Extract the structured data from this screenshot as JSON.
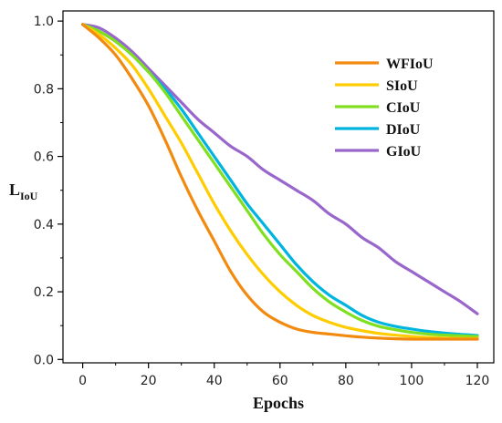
{
  "chart_data": {
    "type": "line",
    "xlabel": "Epochs",
    "ylabel_main": "L",
    "ylabel_sub": "IoU",
    "xlim": [
      -6,
      125
    ],
    "ylim": [
      -0.01,
      1.03
    ],
    "x_ticks": [
      0,
      20,
      40,
      60,
      80,
      100,
      120
    ],
    "x_tick_labels": [
      "0",
      "20",
      "40",
      "60",
      "80",
      "100",
      "120"
    ],
    "y_ticks": [
      0.0,
      0.2,
      0.4,
      0.6,
      0.8,
      1.0
    ],
    "y_tick_labels": [
      "0.0",
      "0.2",
      "0.4",
      "0.6",
      "0.8",
      "1.0"
    ],
    "grid": false,
    "legend_position": "top-right",
    "series": [
      {
        "name": "WFIoU",
        "color": "#f28a10",
        "x": [
          0,
          5,
          10,
          15,
          20,
          25,
          30,
          35,
          40,
          45,
          50,
          55,
          60,
          65,
          70,
          75,
          80,
          85,
          90,
          95,
          100,
          105,
          110,
          115,
          120
        ],
        "y": [
          0.99,
          0.95,
          0.9,
          0.83,
          0.75,
          0.65,
          0.54,
          0.44,
          0.35,
          0.26,
          0.19,
          0.14,
          0.11,
          0.09,
          0.08,
          0.075,
          0.07,
          0.066,
          0.063,
          0.061,
          0.06,
          0.06,
          0.06,
          0.06,
          0.06
        ]
      },
      {
        "name": "SIoU",
        "color": "#ffcc00",
        "x": [
          0,
          5,
          10,
          15,
          20,
          25,
          30,
          35,
          40,
          45,
          50,
          55,
          60,
          65,
          70,
          75,
          80,
          85,
          90,
          95,
          100,
          105,
          110,
          115,
          120
        ],
        "y": [
          0.99,
          0.96,
          0.92,
          0.87,
          0.8,
          0.72,
          0.64,
          0.55,
          0.46,
          0.38,
          0.31,
          0.25,
          0.2,
          0.16,
          0.13,
          0.11,
          0.095,
          0.085,
          0.077,
          0.072,
          0.068,
          0.065,
          0.063,
          0.062,
          0.062
        ]
      },
      {
        "name": "CIoU",
        "color": "#80e020",
        "x": [
          0,
          5,
          10,
          15,
          20,
          25,
          30,
          35,
          40,
          45,
          50,
          55,
          60,
          65,
          70,
          75,
          80,
          85,
          90,
          95,
          100,
          105,
          110,
          115,
          120
        ],
        "y": [
          0.99,
          0.97,
          0.94,
          0.9,
          0.85,
          0.79,
          0.72,
          0.65,
          0.58,
          0.51,
          0.44,
          0.37,
          0.31,
          0.26,
          0.21,
          0.17,
          0.14,
          0.115,
          0.098,
          0.088,
          0.08,
          0.075,
          0.072,
          0.07,
          0.068
        ]
      },
      {
        "name": "DIoU",
        "color": "#00b4e0",
        "x": [
          0,
          5,
          10,
          15,
          20,
          25,
          30,
          35,
          40,
          45,
          50,
          55,
          60,
          65,
          70,
          75,
          80,
          85,
          90,
          95,
          100,
          105,
          110,
          115,
          120
        ],
        "y": [
          0.99,
          0.97,
          0.94,
          0.9,
          0.85,
          0.8,
          0.74,
          0.67,
          0.6,
          0.53,
          0.46,
          0.4,
          0.34,
          0.28,
          0.23,
          0.19,
          0.16,
          0.13,
          0.11,
          0.098,
          0.09,
          0.083,
          0.078,
          0.074,
          0.071
        ]
      },
      {
        "name": "GIoU",
        "color": "#9966cc",
        "x": [
          0,
          5,
          10,
          15,
          20,
          25,
          30,
          35,
          40,
          45,
          50,
          55,
          60,
          65,
          70,
          75,
          80,
          85,
          90,
          95,
          100,
          105,
          110,
          115,
          120
        ],
        "y": [
          0.99,
          0.98,
          0.95,
          0.91,
          0.86,
          0.81,
          0.76,
          0.71,
          0.67,
          0.63,
          0.6,
          0.56,
          0.53,
          0.5,
          0.47,
          0.43,
          0.4,
          0.36,
          0.33,
          0.29,
          0.26,
          0.23,
          0.2,
          0.17,
          0.135
        ]
      }
    ]
  }
}
